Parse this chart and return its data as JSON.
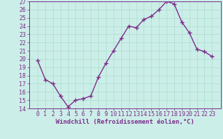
{
  "x": [
    0,
    1,
    2,
    3,
    4,
    5,
    6,
    7,
    8,
    9,
    10,
    11,
    12,
    13,
    14,
    15,
    16,
    17,
    18,
    19,
    20,
    21,
    22,
    23
  ],
  "y": [
    19.8,
    17.5,
    17.0,
    15.5,
    14.2,
    15.0,
    15.2,
    15.5,
    17.8,
    19.5,
    21.0,
    22.5,
    24.0,
    23.8,
    24.8,
    25.2,
    26.0,
    27.0,
    26.7,
    24.5,
    23.2,
    21.2,
    20.9,
    20.3
  ],
  "line_color": "#7b2d8b",
  "marker": "+",
  "markersize": 4,
  "markeredgewidth": 1.0,
  "linewidth": 1.0,
  "bg_color": "#cceee8",
  "grid_color": "#aaddcc",
  "xlabel": "Windchill (Refroidissement éolien,°C)",
  "xlabel_color": "#7b2d8b",
  "tick_color": "#7b2d8b",
  "spine_color": "#7b2d8b",
  "ylim": [
    14,
    27
  ],
  "yticks": [
    14,
    15,
    16,
    17,
    18,
    19,
    20,
    21,
    22,
    23,
    24,
    25,
    26,
    27
  ],
  "xticks": [
    0,
    1,
    2,
    3,
    4,
    5,
    6,
    7,
    8,
    9,
    10,
    11,
    12,
    13,
    14,
    15,
    16,
    17,
    18,
    19,
    20,
    21,
    22,
    23
  ],
  "axis_label_fontsize": 6.5,
  "tick_fontsize": 6.0
}
